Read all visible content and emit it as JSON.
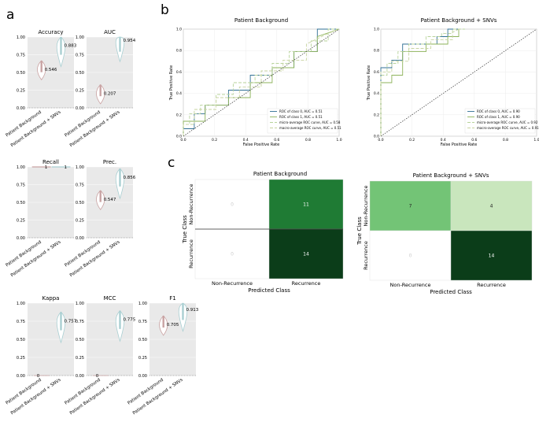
{
  "panel_labels": {
    "a": "a",
    "b": "b",
    "c": "c"
  },
  "colors": {
    "grid_bg": "#e9e9e9",
    "violin_bg": "#c9a3a3",
    "violin_snv": "#a9cfd2",
    "roc0": "#2f6f94",
    "roc1": "#8db35a",
    "micro": "#b7d39a",
    "macro": "#c7d3a0",
    "diag": "#333333",
    "cm_dark": "#0b3d19",
    "cm_mid": "#1f7b34",
    "cm_light": "#c9e6bd",
    "cm_med": "#73c476"
  },
  "chart_data": [
    {
      "type": "violin",
      "title": "Accuracy",
      "categories": [
        "Patient Background",
        "Patient Background + SNVs"
      ],
      "values": [
        0.546,
        0.883
      ],
      "labels": [
        "0.546",
        "0.883"
      ],
      "ylim": [
        0,
        1
      ],
      "yticks": [
        "0.00",
        "0.25",
        "0.50",
        "0.75",
        "1.00"
      ]
    },
    {
      "type": "violin",
      "title": "AUC",
      "categories": [
        "Patient Background",
        "Patient Background + SNVs"
      ],
      "values": [
        0.207,
        0.954
      ],
      "labels": [
        "0.207",
        "0.954"
      ],
      "ylim": [
        0,
        1
      ],
      "yticks": [
        "0.00",
        "0.25",
        "0.50",
        "0.75",
        "1.00"
      ]
    },
    {
      "type": "violin",
      "title": "Recall",
      "categories": [
        "Patient Background",
        "Patient Background + SNVs"
      ],
      "values": [
        1,
        1
      ],
      "labels": [
        "1",
        "1"
      ],
      "ylim": [
        0,
        1
      ],
      "yticks": [
        "0.00",
        "0.25",
        "0.50",
        "0.75",
        "1.00"
      ]
    },
    {
      "type": "violin",
      "title": "Prec.",
      "categories": [
        "Patient Background",
        "Patient Background + SNVs"
      ],
      "values": [
        0.547,
        0.856
      ],
      "labels": [
        "0.547",
        "0.856"
      ],
      "ylim": [
        0,
        1
      ],
      "yticks": [
        "0.00",
        "0.25",
        "0.50",
        "0.75",
        "1.00"
      ]
    },
    {
      "type": "violin",
      "title": "Kappa",
      "categories": [
        "Patient Background",
        "Patient Background + SNVs"
      ],
      "values": [
        0,
        0.757
      ],
      "labels": [
        "0",
        "0.757"
      ],
      "ylim": [
        0,
        1
      ],
      "yticks": [
        "0.00",
        "0.25",
        "0.50",
        "0.75",
        "1.00"
      ]
    },
    {
      "type": "violin",
      "title": "MCC",
      "categories": [
        "Patient Background",
        "Patient Background + SNVs"
      ],
      "values": [
        0,
        0.775
      ],
      "labels": [
        "0",
        "0.775"
      ],
      "ylim": [
        0,
        1
      ],
      "yticks": [
        "0.00",
        "0.25",
        "0.50",
        "0.75",
        "1.00"
      ]
    },
    {
      "type": "violin",
      "title": "F1",
      "categories": [
        "Patient Background",
        "Patient Background + SNVs"
      ],
      "values": [
        0.705,
        0.913
      ],
      "labels": [
        "0.705",
        "0.913"
      ],
      "ylim": [
        0,
        1
      ],
      "yticks": [
        "0.00",
        "0.25",
        "0.50",
        "0.75",
        "1.00"
      ]
    },
    {
      "type": "line",
      "title": "Patient Background",
      "xlabel": "False Positive Rate",
      "ylabel": "True Positive Rate",
      "xlim": [
        0,
        1
      ],
      "ylim": [
        0,
        1
      ],
      "xticks": [
        "0.0",
        "0.2",
        "0.4",
        "0.6",
        "0.8",
        "1.0"
      ],
      "yticks": [
        "0.0",
        "0.2",
        "0.4",
        "0.6",
        "0.8",
        "1.0"
      ],
      "legend": [
        "ROC of class 0, AUC = 0.51",
        "ROC of class 1, AUC = 0.51",
        "micro-average ROC curve, AUC = 0.58",
        "macro-average ROC curve, AUC = 0.51"
      ],
      "series": [
        {
          "name": "ROC of class 0",
          "x": [
            0,
            0,
            0.07,
            0.07,
            0.14,
            0.14,
            0.29,
            0.29,
            0.43,
            0.43,
            0.57,
            0.57,
            0.71,
            0.71,
            0.86,
            0.86,
            1
          ],
          "y": [
            0,
            0.07,
            0.07,
            0.21,
            0.21,
            0.29,
            0.29,
            0.43,
            0.43,
            0.57,
            0.57,
            0.64,
            0.64,
            0.79,
            0.79,
            1,
            1
          ]
        },
        {
          "name": "ROC of class 1",
          "x": [
            0,
            0,
            0.14,
            0.14,
            0.29,
            0.29,
            0.43,
            0.43,
            0.57,
            0.57,
            0.71,
            0.71,
            0.86,
            0.86,
            1
          ],
          "y": [
            0,
            0.14,
            0.14,
            0.29,
            0.29,
            0.36,
            0.36,
            0.5,
            0.5,
            0.64,
            0.64,
            0.79,
            0.79,
            0.93,
            1
          ]
        },
        {
          "name": "micro-average",
          "x": [
            0,
            0,
            0.04,
            0.04,
            0.11,
            0.11,
            0.21,
            0.21,
            0.32,
            0.32,
            0.46,
            0.46,
            0.57,
            0.57,
            0.68,
            0.68,
            0.82,
            0.82,
            0.93,
            0.93,
            1
          ],
          "y": [
            0,
            0.11,
            0.11,
            0.21,
            0.21,
            0.29,
            0.29,
            0.39,
            0.39,
            0.5,
            0.5,
            0.57,
            0.57,
            0.68,
            0.68,
            0.79,
            0.79,
            0.89,
            0.89,
            1,
            1
          ]
        },
        {
          "name": "macro-average",
          "x": [
            0,
            0,
            0.07,
            0.07,
            0.21,
            0.21,
            0.36,
            0.36,
            0.5,
            0.5,
            0.64,
            0.64,
            0.79,
            0.79,
            0.93,
            1
          ],
          "y": [
            0,
            0.11,
            0.11,
            0.25,
            0.25,
            0.36,
            0.36,
            0.46,
            0.46,
            0.61,
            0.61,
            0.71,
            0.71,
            0.86,
            0.96,
            1
          ]
        },
        {
          "name": "diagonal",
          "x": [
            0,
            1
          ],
          "y": [
            0,
            1
          ]
        }
      ]
    },
    {
      "type": "line",
      "title": "Patient Background + SNVs",
      "xlabel": "False Positive Rate",
      "ylabel": "True Positive Rate",
      "xlim": [
        0,
        1
      ],
      "ylim": [
        0,
        1
      ],
      "xticks": [
        "0.0",
        "0.2",
        "0.4",
        "0.6",
        "0.8",
        "1.0"
      ],
      "yticks": [
        "0.0",
        "0.2",
        "0.4",
        "0.6",
        "0.8",
        "1.0"
      ],
      "legend": [
        "ROC of class 0, AUC = 0.90",
        "ROC of class 1, AUC = 0.90",
        "micro-average ROC curve, AUC = 0.92",
        "macro-average ROC curve, AUC = 0.91"
      ],
      "series": [
        {
          "name": "ROC of class 0",
          "x": [
            0,
            0,
            0.07,
            0.07,
            0.14,
            0.14,
            0.21,
            0.21,
            0.36,
            0.36,
            0.43,
            0.43,
            0.5,
            0.5
          ],
          "y": [
            0,
            0.64,
            0.64,
            0.71,
            0.71,
            0.86,
            0.86,
            0.86,
            0.86,
            0.93,
            0.93,
            1,
            1,
            1
          ]
        },
        {
          "name": "ROC of class 1",
          "x": [
            0,
            0,
            0.07,
            0.07,
            0.14,
            0.14,
            0.29,
            0.29,
            0.43,
            0.43,
            0.5,
            0.5
          ],
          "y": [
            0,
            0.5,
            0.5,
            0.57,
            0.57,
            0.79,
            0.79,
            0.86,
            0.86,
            0.93,
            0.93,
            1
          ]
        },
        {
          "name": "micro-average",
          "x": [
            0,
            0,
            0.04,
            0.04,
            0.11,
            0.11,
            0.18,
            0.18,
            0.29,
            0.29,
            0.39,
            0.39,
            0.46,
            0.46,
            0.54
          ],
          "y": [
            0,
            0.57,
            0.57,
            0.68,
            0.68,
            0.79,
            0.79,
            0.86,
            0.86,
            0.93,
            0.93,
            0.96,
            0.96,
            1,
            1
          ]
        },
        {
          "name": "macro-average",
          "x": [
            0,
            0,
            0.07,
            0.07,
            0.18,
            0.18,
            0.32,
            0.32,
            0.46,
            0.46,
            0.5
          ],
          "y": [
            0,
            0.6,
            0.6,
            0.7,
            0.7,
            0.82,
            0.82,
            0.9,
            0.9,
            0.97,
            1
          ]
        },
        {
          "name": "diagonal",
          "x": [
            0,
            1
          ],
          "y": [
            0,
            1
          ]
        }
      ]
    },
    {
      "type": "heatmap",
      "title": "Patient Background",
      "row_labels": [
        "Non-Recurrence",
        "Recurrence"
      ],
      "col_labels": [
        "Non-Recurrence",
        "Recurrence"
      ],
      "xlabel": "Predicted Class",
      "ylabel": "True Class",
      "values": [
        [
          0,
          11
        ],
        [
          0,
          14
        ]
      ],
      "labels": [
        [
          "0",
          "11"
        ],
        [
          "0",
          "14"
        ]
      ]
    },
    {
      "type": "heatmap",
      "title": "Patient Background + SNVs",
      "row_labels": [
        "Non-Recurrence",
        "Recurrence"
      ],
      "col_labels": [
        "Non-Recurrence",
        "Recurrence"
      ],
      "xlabel": "Predicted Class",
      "ylabel": "True Class",
      "values": [
        [
          7,
          4
        ],
        [
          0,
          14
        ]
      ],
      "labels": [
        [
          "7",
          "4"
        ],
        [
          "0",
          "14"
        ]
      ]
    }
  ]
}
